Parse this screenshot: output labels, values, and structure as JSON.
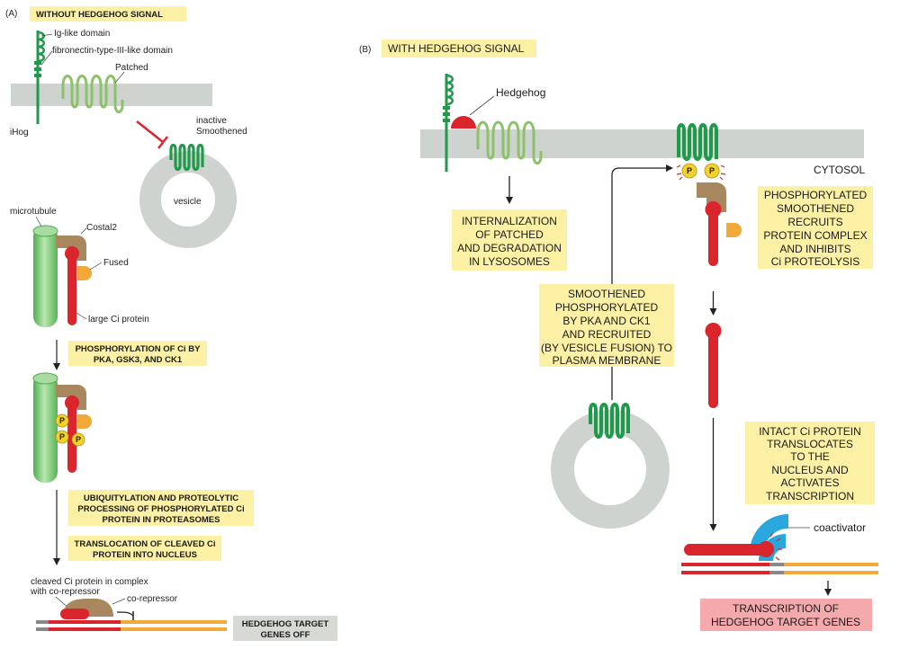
{
  "colors": {
    "membrane": "#cfd3d0",
    "patched": "#8cc26a",
    "smoothened": "#1f9a4a",
    "ci_red": "#d9252b",
    "costal2": "#a8875e",
    "fused": "#f3a93a",
    "phospho": "#f3d12b",
    "label_box": "#fbf0a4",
    "target_box": "#f4a9ad",
    "genes_off_box": "#d6d9d4",
    "coactivator": "#2aa7dd",
    "dna_orange": "#f2a93a",
    "dna_red": "#d9252b",
    "microtubule": "#7ccb7a"
  },
  "panel_a": {
    "letter": "(A)",
    "title": "WITHOUT HEDGEHOG SIGNAL",
    "labels": {
      "ig_like": "Ig-like domain",
      "fibronectin": "fibronectin-type-III-like domain",
      "patched": "Patched",
      "ihog": "iHog",
      "inactive_smoothened_1": "inactive",
      "inactive_smoothened_2": "Smoothened",
      "vesicle": "vesicle",
      "microtubule": "microtubule",
      "costal2": "Costal2",
      "fused": "Fused",
      "large_ci": "large Ci protein",
      "phospho_symbol": "P",
      "cleaved_1": "cleaved Ci protein in complex",
      "cleaved_2": "with co-repressor",
      "corepressor": "co-repressor"
    },
    "steps": {
      "phosphorylation": [
        "PHOSPHORYLATION OF Ci BY",
        "PKA, GSK3, AND CK1"
      ],
      "ubiquitylation": [
        "UBIQUITYLATION AND PROTEOLYTIC",
        "PROCESSING OF PHOSPHORYLATED Ci",
        "PROTEIN IN PROTEASOMES"
      ],
      "translocation": [
        "TRANSLOCATION OF CLEAVED Ci",
        "PROTEIN INTO NUCLEUS"
      ],
      "genes_off": [
        "HEDGEHOG TARGET",
        "GENES OFF"
      ]
    }
  },
  "panel_b": {
    "letter": "(B)",
    "title": "WITH HEDGEHOG SIGNAL",
    "labels": {
      "hedgehog": "Hedgehog",
      "cytosol": "CYTOSOL",
      "coactivator": "coactivator",
      "phospho_symbol": "P"
    },
    "steps": {
      "internalization": [
        "INTERNALIZATION",
        "OF PATCHED",
        "AND DEGRADATION",
        "IN LYSOSOMES"
      ],
      "smoothened_phos": [
        "SMOOTHENED",
        "PHOSPHORYLATED",
        "BY PKA AND CK1",
        "AND RECRUITED",
        "(BY VESICLE FUSION) TO",
        "PLASMA MEMBRANE"
      ],
      "recruits": [
        "PHOSPHORYLATED",
        "SMOOTHENED",
        "RECRUITS",
        "PROTEIN COMPLEX",
        "AND INHIBITS",
        "Ci PROTEOLYSIS"
      ],
      "intact_ci": [
        "INTACT Ci PROTEIN",
        "TRANSLOCATES",
        "TO THE",
        "NUCLEUS AND",
        "ACTIVATES",
        "TRANSCRIPTION"
      ],
      "transcription": [
        "TRANSCRIPTION OF",
        "HEDGEHOG TARGET GENES"
      ]
    }
  }
}
